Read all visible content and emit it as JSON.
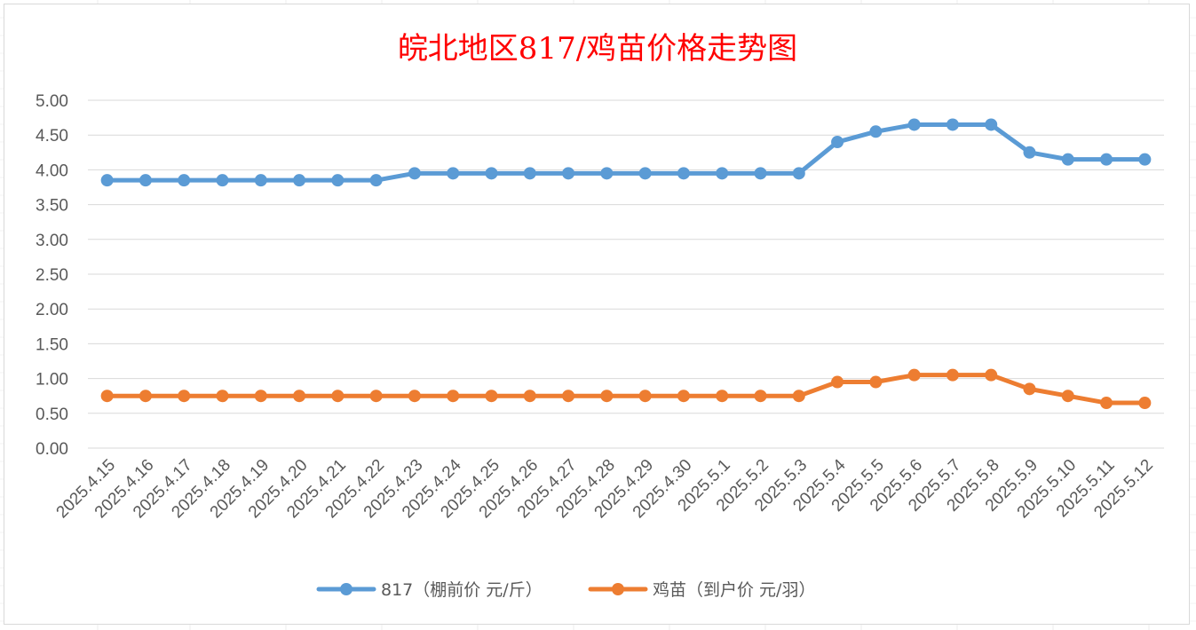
{
  "chart_data": {
    "type": "line",
    "title": "皖北地区817/鸡苗价格走势图",
    "xlabel": "",
    "ylabel": "",
    "ylim": [
      0,
      5
    ],
    "yticks": [
      "0.00",
      "0.50",
      "1.00",
      "1.50",
      "2.00",
      "2.50",
      "3.00",
      "3.50",
      "4.00",
      "4.50",
      "5.00"
    ],
    "grid": "horizontal",
    "legend_position": "bottom",
    "categories": [
      "2025.4.15",
      "2025.4.16",
      "2025.4.17",
      "2025.4.18",
      "2025.4.19",
      "2025.4.20",
      "2025.4.21",
      "2025.4.22",
      "2025.4.23",
      "2025.4.24",
      "2025.4.25",
      "2025.4.26",
      "2025.4.27",
      "2025.4.28",
      "2025.4.29",
      "2025.4.30",
      "2025.5.1",
      "2025.5.2",
      "2025.5.3",
      "2025.5.4",
      "2025.5.5",
      "2025.5.6",
      "2025.5.7",
      "2025.5.8",
      "2025.5.9",
      "2025.5.10",
      "2025.5.11",
      "2025.5.12"
    ],
    "series": [
      {
        "name": "817（棚前价 元/斤）",
        "color": "#5b9bd5",
        "values": [
          3.85,
          3.85,
          3.85,
          3.85,
          3.85,
          3.85,
          3.85,
          3.85,
          3.95,
          3.95,
          3.95,
          3.95,
          3.95,
          3.95,
          3.95,
          3.95,
          3.95,
          3.95,
          3.95,
          4.4,
          4.55,
          4.65,
          4.65,
          4.65,
          4.25,
          4.15,
          4.15,
          4.15
        ]
      },
      {
        "name": "鸡苗（到户价 元/羽）",
        "color": "#ed7d31",
        "values": [
          0.75,
          0.75,
          0.75,
          0.75,
          0.75,
          0.75,
          0.75,
          0.75,
          0.75,
          0.75,
          0.75,
          0.75,
          0.75,
          0.75,
          0.75,
          0.75,
          0.75,
          0.75,
          0.75,
          0.95,
          0.95,
          1.05,
          1.05,
          1.05,
          0.85,
          0.75,
          0.65,
          0.65
        ]
      }
    ]
  },
  "colors": {
    "title": "#ff0000",
    "gridline": "#d9d9d9",
    "tick_text": "#595959"
  }
}
